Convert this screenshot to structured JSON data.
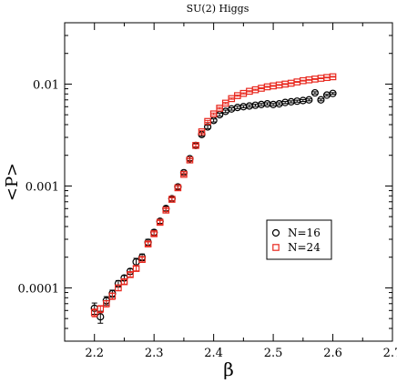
{
  "chart_data": {
    "type": "scatter",
    "title": "SU(2) Higgs",
    "xlabel": "β",
    "ylabel": "<P>",
    "xlim": [
      2.15,
      2.7
    ],
    "ylim": [
      3e-05,
      0.04
    ],
    "yscale": "log",
    "x_ticks": [
      2.2,
      2.3,
      2.4,
      2.5,
      2.6,
      2.7
    ],
    "x_tick_labels": [
      "2.2",
      "2.3",
      "2.4",
      "2.5",
      "2.6",
      "2.7"
    ],
    "y_ticks": [
      0.0001,
      0.001,
      0.01
    ],
    "y_tick_labels": [
      "0.0001",
      "0.001",
      "0.01"
    ],
    "grid": false,
    "legend_position": "right-middle",
    "series": [
      {
        "name": "N=16",
        "marker": "circle",
        "color": "#000000",
        "x": [
          2.2,
          2.21,
          2.22,
          2.23,
          2.24,
          2.25,
          2.26,
          2.27,
          2.28,
          2.29,
          2.3,
          2.31,
          2.32,
          2.33,
          2.34,
          2.35,
          2.36,
          2.37,
          2.38,
          2.39,
          2.4,
          2.41,
          2.42,
          2.43,
          2.44,
          2.45,
          2.46,
          2.47,
          2.48,
          2.49,
          2.5,
          2.51,
          2.52,
          2.53,
          2.54,
          2.55,
          2.56,
          2.57,
          2.58,
          2.59,
          2.6
        ],
        "y": [
          6.3e-05,
          5.2e-05,
          7.5e-05,
          8.8e-05,
          0.00011,
          0.000125,
          0.000145,
          0.00018,
          0.0002,
          0.00028,
          0.00035,
          0.00045,
          0.0006,
          0.00075,
          0.00098,
          0.00135,
          0.00185,
          0.0025,
          0.0032,
          0.0038,
          0.0044,
          0.005,
          0.0054,
          0.0057,
          0.0059,
          0.006,
          0.0061,
          0.0062,
          0.0063,
          0.0064,
          0.0063,
          0.0064,
          0.0066,
          0.0067,
          0.0068,
          0.0069,
          0.007,
          0.0082,
          0.007,
          0.0078,
          0.0081
        ],
        "yerr": [
          8e-06,
          7e-06,
          7e-06,
          7e-06,
          8e-06,
          7e-06,
          9e-06,
          1.5e-05,
          1.5e-05,
          2e-05,
          2e-05,
          2e-05,
          3e-05,
          3e-05,
          4e-05,
          5e-05,
          7e-05,
          0.0001,
          0.00012,
          0.00014,
          0.00015,
          0.00015,
          0.00015,
          0.00015,
          0.00015,
          0.00015,
          0.00015,
          0.00015,
          0.00015,
          0.00015,
          0.00015,
          0.00015,
          0.00015,
          0.00015,
          0.00015,
          0.00015,
          0.00015,
          0.0002,
          0.00015,
          0.00015,
          0.00015
        ]
      },
      {
        "name": "N=24",
        "marker": "square",
        "color": "#e8281e",
        "x": [
          2.2,
          2.21,
          2.22,
          2.23,
          2.24,
          2.25,
          2.26,
          2.27,
          2.28,
          2.29,
          2.3,
          2.31,
          2.32,
          2.33,
          2.34,
          2.35,
          2.36,
          2.37,
          2.38,
          2.39,
          2.4,
          2.41,
          2.42,
          2.43,
          2.44,
          2.45,
          2.46,
          2.47,
          2.48,
          2.49,
          2.5,
          2.51,
          2.52,
          2.53,
          2.54,
          2.55,
          2.56,
          2.57,
          2.58,
          2.59,
          2.6
        ],
        "y": [
          5.7e-05,
          6.2e-05,
          7e-05,
          8.3e-05,
          0.0001,
          0.000115,
          0.000135,
          0.000155,
          0.00019,
          0.00027,
          0.00034,
          0.00044,
          0.00058,
          0.00074,
          0.00096,
          0.0013,
          0.0018,
          0.0025,
          0.0034,
          0.0043,
          0.0051,
          0.0058,
          0.0065,
          0.0072,
          0.0077,
          0.0081,
          0.0085,
          0.0088,
          0.0091,
          0.0094,
          0.0096,
          0.0098,
          0.01,
          0.0102,
          0.0105,
          0.0108,
          0.011,
          0.0112,
          0.0114,
          0.0116,
          0.0118
        ],
        "yerr": [
          5e-06,
          5e-06,
          5e-06,
          6e-06,
          6e-06,
          6e-06,
          7e-06,
          8e-06,
          1e-05,
          1.2e-05,
          1.4e-05,
          1.8e-05,
          2e-05,
          2.5e-05,
          3e-05,
          4e-05,
          5e-05,
          7e-05,
          9e-05,
          0.0001,
          0.0001,
          0.0001,
          0.0001,
          0.0001,
          0.0001,
          0.0001,
          0.0001,
          0.0001,
          0.0001,
          0.0001,
          0.0001,
          0.0001,
          0.0001,
          0.0001,
          0.0001,
          0.0001,
          0.0001,
          0.0001,
          0.0001,
          0.0001,
          0.0001
        ]
      }
    ]
  }
}
